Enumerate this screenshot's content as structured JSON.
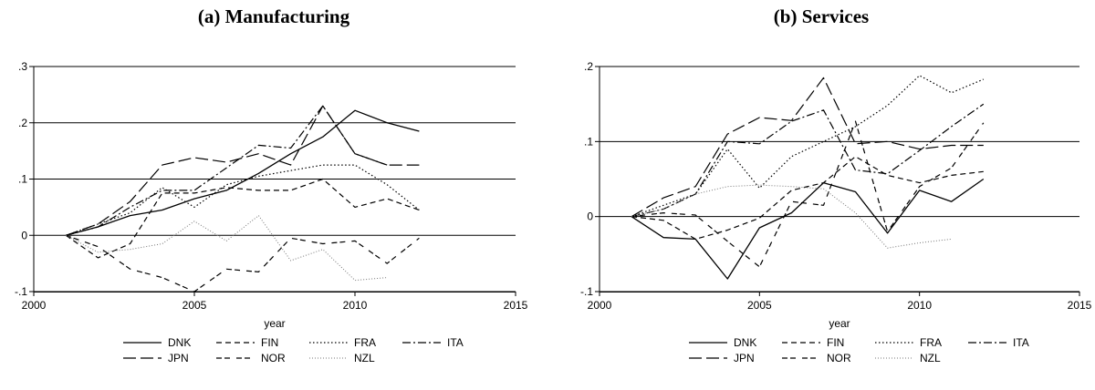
{
  "chart_data": [
    {
      "type": "line",
      "title": "(a) Manufacturing",
      "xlabel": "year",
      "ylabel": "",
      "xlim": [
        2000,
        2015
      ],
      "ylim": [
        -0.1,
        0.3
      ],
      "xticks": [
        2000,
        2005,
        2010,
        2015
      ],
      "xtick_labels": [
        "2000",
        "2005",
        "2010",
        "2015"
      ],
      "yticks": [
        -0.1,
        0,
        0.1,
        0.2,
        0.3
      ],
      "ytick_labels": [
        "-.1",
        "0",
        ".1",
        ".2",
        ".3"
      ],
      "grid": "horizontal at ticks",
      "legend_position": "bottom",
      "series": [
        {
          "name": "DNK",
          "dash": "solid",
          "color": "#000000",
          "width": 1.3,
          "x": [
            2001,
            2002,
            2003,
            2004,
            2005,
            2006,
            2007,
            2008,
            2009,
            2010,
            2011,
            2012
          ],
          "values": [
            0,
            0.015,
            0.035,
            0.045,
            0.065,
            0.08,
            0.11,
            0.145,
            0.175,
            0.222,
            0.2,
            0.185
          ]
        },
        {
          "name": "FIN",
          "dash": "dashed",
          "color": "#000000",
          "width": 1.2,
          "x": [
            2001,
            2002,
            2003,
            2004,
            2005,
            2006,
            2007,
            2008,
            2009,
            2010,
            2011,
            2012
          ],
          "values": [
            0,
            -0.04,
            -0.015,
            0.075,
            0.075,
            0.085,
            0.08,
            0.08,
            0.1,
            0.05,
            0.065,
            0.045
          ]
        },
        {
          "name": "FRA",
          "dash": "dotted",
          "color": "#000000",
          "width": 1.2,
          "x": [
            2001,
            2002,
            2003,
            2004,
            2005,
            2006,
            2007,
            2008,
            2009,
            2010,
            2011,
            2012
          ],
          "values": [
            0,
            0.02,
            0.04,
            0.085,
            0.05,
            0.09,
            0.105,
            0.115,
            0.125,
            0.125,
            0.09,
            0.045
          ]
        },
        {
          "name": "ITA",
          "dash": "dashdot",
          "color": "#000000",
          "width": 1.2,
          "x": [
            2001,
            2002,
            2003,
            2004,
            2005,
            2006,
            2007,
            2008,
            2009,
            2010,
            2011
          ],
          "values": [
            0,
            0.015,
            0.05,
            0.08,
            0.08,
            0.12,
            0.16,
            0.155,
            0.23,
            0.145,
            0.125
          ]
        },
        {
          "name": "JPN",
          "dash": "longdash",
          "color": "#000000",
          "width": 1.2,
          "x": [
            2001,
            2002,
            2003,
            2004,
            2005,
            2006,
            2007,
            2008,
            2009,
            2010,
            2011,
            2012
          ],
          "values": [
            0,
            0.02,
            0.06,
            0.125,
            0.138,
            0.13,
            0.145,
            0.125,
            0.23,
            0.145,
            0.125,
            0.125
          ]
        },
        {
          "name": "NOR",
          "dash": "dashdash",
          "color": "#000000",
          "width": 1.2,
          "x": [
            2001,
            2002,
            2003,
            2004,
            2005,
            2006,
            2007,
            2008,
            2009,
            2010,
            2011,
            2012
          ],
          "values": [
            0,
            -0.02,
            -0.06,
            -0.075,
            -0.1,
            -0.06,
            -0.065,
            -0.005,
            -0.015,
            -0.01,
            -0.05,
            -0.005
          ]
        },
        {
          "name": "NZL",
          "dash": "finedot",
          "color": "#777777",
          "width": 1.0,
          "x": [
            2001,
            2002,
            2003,
            2004,
            2005,
            2006,
            2007,
            2008,
            2009,
            2010,
            2011
          ],
          "values": [
            0,
            -0.03,
            -0.025,
            -0.015,
            0.025,
            -0.01,
            0.035,
            -0.045,
            -0.025,
            -0.08,
            -0.075
          ]
        }
      ]
    },
    {
      "type": "line",
      "title": "(b) Services",
      "xlabel": "year",
      "ylabel": "",
      "xlim": [
        2000,
        2015
      ],
      "ylim": [
        -0.1,
        0.2
      ],
      "xticks": [
        2000,
        2005,
        2010,
        2015
      ],
      "xtick_labels": [
        "2000",
        "2005",
        "2010",
        "2015"
      ],
      "yticks": [
        -0.1,
        0,
        0.1,
        0.2
      ],
      "ytick_labels": [
        "-.1",
        "0",
        ".1",
        ".2"
      ],
      "grid": "horizontal at ticks",
      "legend_position": "bottom",
      "series": [
        {
          "name": "DNK",
          "dash": "solid",
          "color": "#000000",
          "width": 1.3,
          "x": [
            2001,
            2002,
            2003,
            2004,
            2005,
            2006,
            2007,
            2008,
            2009,
            2010,
            2011,
            2012
          ],
          "values": [
            0,
            -0.028,
            -0.03,
            -0.083,
            -0.015,
            0.005,
            0.045,
            0.033,
            -0.022,
            0.035,
            0.02,
            0.05
          ]
        },
        {
          "name": "FIN",
          "dash": "dashed",
          "color": "#000000",
          "width": 1.2,
          "x": [
            2001,
            2002,
            2003,
            2004,
            2005,
            2006,
            2007,
            2008,
            2009,
            2010,
            2011,
            2012
          ],
          "values": [
            0,
            -0.005,
            -0.03,
            -0.018,
            -0.002,
            0.035,
            0.045,
            0.08,
            0.055,
            0.045,
            0.055,
            0.06
          ]
        },
        {
          "name": "FRA",
          "dash": "dotted",
          "color": "#000000",
          "width": 1.2,
          "x": [
            2001,
            2002,
            2003,
            2004,
            2005,
            2006,
            2007,
            2008,
            2009,
            2010,
            2011,
            2012
          ],
          "values": [
            0,
            0.015,
            0.03,
            0.09,
            0.038,
            0.08,
            0.1,
            0.12,
            0.148,
            0.188,
            0.165,
            0.183
          ]
        },
        {
          "name": "ITA",
          "dash": "dashdot",
          "color": "#000000",
          "width": 1.2,
          "x": [
            2001,
            2002,
            2003,
            2004,
            2005,
            2006,
            2007,
            2008,
            2009,
            2010,
            2011,
            2012
          ],
          "values": [
            0,
            0.01,
            0.03,
            0.1,
            0.097,
            0.127,
            0.142,
            0.062,
            0.057,
            0.088,
            0.12,
            0.15
          ]
        },
        {
          "name": "JPN",
          "dash": "longdash",
          "color": "#000000",
          "width": 1.2,
          "x": [
            2001,
            2002,
            2003,
            2004,
            2005,
            2006,
            2007,
            2008,
            2009,
            2010,
            2011,
            2012
          ],
          "values": [
            0,
            0.025,
            0.04,
            0.11,
            0.132,
            0.128,
            0.185,
            0.097,
            0.1,
            0.09,
            0.095,
            0.095
          ]
        },
        {
          "name": "NOR",
          "dash": "dashdash",
          "color": "#000000",
          "width": 1.2,
          "x": [
            2001,
            2002,
            2003,
            2004,
            2005,
            2006,
            2007,
            2008,
            2009,
            2010,
            2011,
            2012
          ],
          "values": [
            0,
            0.005,
            0.002,
            -0.033,
            -0.067,
            0.02,
            0.015,
            0.127,
            -0.02,
            0.04,
            0.065,
            0.125
          ]
        },
        {
          "name": "NZL",
          "dash": "finedot",
          "color": "#777777",
          "width": 1.0,
          "x": [
            2001,
            2002,
            2003,
            2004,
            2005,
            2006,
            2007,
            2008,
            2009,
            2010,
            2011
          ],
          "values": [
            0,
            0.01,
            0.03,
            0.04,
            0.042,
            0.04,
            0.037,
            0.005,
            -0.042,
            -0.035,
            -0.03
          ]
        }
      ]
    }
  ]
}
